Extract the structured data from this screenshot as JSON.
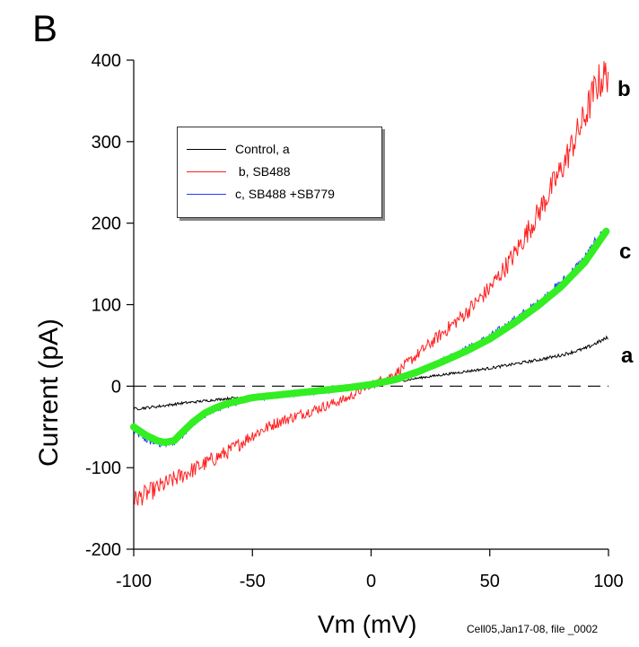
{
  "panel_letter": "B",
  "footnote": "Cell05,Jan17-08, file _0002",
  "curve_labels": {
    "b": "b",
    "c": "c",
    "a": "a"
  },
  "chart_data": {
    "type": "line",
    "xlabel": "Vm (mV)",
    "ylabel": "Current (pA)",
    "xlim": [
      -100,
      100
    ],
    "ylim": [
      -200,
      400
    ],
    "xticks": [
      -100,
      -50,
      0,
      50,
      100
    ],
    "yticks": [
      -200,
      -100,
      0,
      100,
      200,
      300,
      400
    ],
    "xtick_labels": [
      "-100",
      "-50",
      "0",
      "50",
      "100"
    ],
    "ytick_labels": [
      "-200",
      "-100",
      "0",
      "100",
      "200",
      "300",
      "400"
    ],
    "zero_line": {
      "y": 0,
      "style": "dashed"
    },
    "grid": false,
    "legend_position": "upper-left",
    "legend": [
      {
        "label": "Control, a",
        "color": "#000000"
      },
      {
        "label": " b, SB488",
        "color": "#ff2020"
      },
      {
        "label": "c, SB488 +SB779",
        "color": "#1f3fff"
      }
    ],
    "series": [
      {
        "name": "Control, a",
        "color": "#000000",
        "x": [
          -100,
          -90,
          -80,
          -70,
          -60,
          -50,
          -40,
          -30,
          -20,
          -10,
          0,
          10,
          20,
          30,
          40,
          50,
          60,
          70,
          80,
          90,
          100
        ],
        "y": [
          -28,
          -25,
          -21,
          -18,
          -15,
          -12,
          -10,
          -8,
          -5,
          -3,
          0,
          5,
          10,
          14,
          18,
          22,
          27,
          32,
          38,
          46,
          60
        ]
      },
      {
        "name": " b, SB488",
        "color": "#ff2020",
        "x": [
          -100,
          -90,
          -80,
          -70,
          -60,
          -50,
          -40,
          -30,
          -20,
          -10,
          0,
          10,
          20,
          30,
          40,
          50,
          60,
          70,
          80,
          90,
          95,
          100
        ],
        "y": [
          -140,
          -125,
          -110,
          -95,
          -80,
          -60,
          -45,
          -35,
          -25,
          -15,
          2,
          15,
          40,
          65,
          90,
          120,
          160,
          210,
          265,
          330,
          370,
          385
        ]
      },
      {
        "name": "c, SB488 +SB779",
        "color": "#1f3fff",
        "x": [
          -100,
          -95,
          -90,
          -87,
          -83,
          -80,
          -75,
          -70,
          -65,
          -60,
          -50,
          -40,
          -30,
          -20,
          -10,
          0,
          10,
          20,
          30,
          40,
          50,
          60,
          70,
          80,
          90,
          100
        ],
        "y": [
          -55,
          -65,
          -70,
          -71,
          -68,
          -60,
          -45,
          -35,
          -28,
          -22,
          -15,
          -12,
          -9,
          -6,
          -3,
          0,
          8,
          18,
          32,
          45,
          60,
          80,
          100,
          125,
          155,
          195
        ]
      },
      {
        "name": "fit",
        "color": "#33ee22",
        "x": [
          -100,
          -95,
          -90,
          -87,
          -83,
          -80,
          -75,
          -70,
          -65,
          -60,
          -50,
          -40,
          -30,
          -20,
          -10,
          0,
          10,
          20,
          30,
          40,
          50,
          60,
          70,
          80,
          90,
          99
        ],
        "y": [
          -50,
          -60,
          -67,
          -69,
          -67,
          -58,
          -44,
          -33,
          -26,
          -21,
          -14,
          -11,
          -8,
          -5,
          -2,
          2,
          8,
          18,
          30,
          43,
          58,
          77,
          98,
          122,
          152,
          190
        ]
      }
    ]
  }
}
